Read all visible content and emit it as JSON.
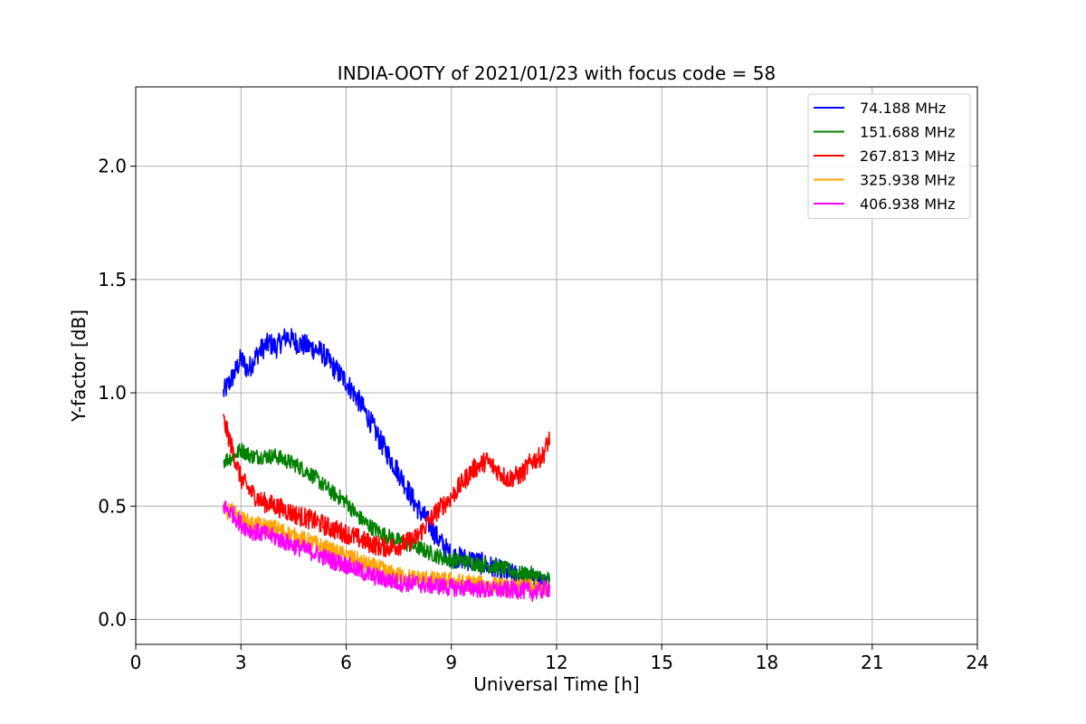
{
  "chart_data": {
    "type": "line",
    "title": "INDIA-OOTY of 2021/01/23 with focus code = 58",
    "xlabel": "Universal Time [h]",
    "ylabel": "Y-factor [dB]",
    "xlim": [
      0,
      24
    ],
    "ylim": [
      -0.11,
      2.35
    ],
    "xticks": [
      0,
      3,
      6,
      9,
      12,
      15,
      18,
      21,
      24
    ],
    "yticks": [
      0.0,
      0.5,
      1.0,
      1.5,
      2.0
    ],
    "xtick_labels": [
      "0",
      "3",
      "6",
      "9",
      "12",
      "15",
      "18",
      "21",
      "24"
    ],
    "ytick_labels": [
      "0.0",
      "0.5",
      "1.0",
      "1.5",
      "2.0"
    ],
    "grid": true,
    "legend_position": "top-right",
    "series": [
      {
        "name": " 74.188 MHz",
        "color": "#0000ff",
        "x": [
          2.5,
          2.8,
          3.0,
          3.2,
          3.5,
          3.8,
          4.0,
          4.3,
          4.6,
          5.0,
          5.3,
          5.6,
          6.0,
          6.3,
          6.6,
          7.0,
          7.3,
          7.6,
          8.0,
          8.3,
          8.6,
          9.0,
          9.3,
          9.6,
          10.0,
          10.3,
          10.6,
          11.0,
          11.3,
          11.6,
          11.8
        ],
        "y": [
          1.0,
          1.08,
          1.15,
          1.1,
          1.18,
          1.22,
          1.2,
          1.25,
          1.22,
          1.2,
          1.18,
          1.12,
          1.05,
          0.98,
          0.9,
          0.78,
          0.7,
          0.62,
          0.5,
          0.44,
          0.36,
          0.28,
          0.27,
          0.26,
          0.24,
          0.22,
          0.2,
          0.19,
          0.17,
          0.15,
          0.15
        ]
      },
      {
        "name": "151.688 MHz",
        "color": "#008000",
        "x": [
          2.5,
          2.8,
          3.0,
          3.3,
          3.6,
          4.0,
          4.3,
          4.6,
          5.0,
          5.3,
          5.6,
          6.0,
          6.3,
          6.6,
          7.0,
          7.3,
          7.6,
          8.0,
          8.3,
          8.6,
          9.0,
          9.3,
          9.6,
          10.0,
          10.3,
          10.6,
          11.0,
          11.3,
          11.6,
          11.8
        ],
        "y": [
          0.7,
          0.72,
          0.75,
          0.72,
          0.72,
          0.72,
          0.7,
          0.68,
          0.64,
          0.6,
          0.56,
          0.52,
          0.46,
          0.42,
          0.38,
          0.36,
          0.34,
          0.32,
          0.3,
          0.28,
          0.26,
          0.26,
          0.25,
          0.24,
          0.23,
          0.22,
          0.2,
          0.2,
          0.18,
          0.18
        ]
      },
      {
        "name": "267.813 MHz",
        "color": "#ff0000",
        "x": [
          2.5,
          2.7,
          3.0,
          3.3,
          3.6,
          4.0,
          4.3,
          4.6,
          5.0,
          5.3,
          5.6,
          6.0,
          6.3,
          6.6,
          7.0,
          7.3,
          7.6,
          8.0,
          8.3,
          8.6,
          9.0,
          9.3,
          9.6,
          10.0,
          10.3,
          10.6,
          11.0,
          11.3,
          11.6,
          11.8
        ],
        "y": [
          0.88,
          0.78,
          0.62,
          0.56,
          0.52,
          0.5,
          0.48,
          0.46,
          0.44,
          0.42,
          0.4,
          0.38,
          0.36,
          0.34,
          0.32,
          0.32,
          0.33,
          0.36,
          0.42,
          0.48,
          0.54,
          0.6,
          0.66,
          0.7,
          0.66,
          0.62,
          0.64,
          0.7,
          0.72,
          0.8
        ]
      },
      {
        "name": "325.938 MHz",
        "color": "#ffa500",
        "x": [
          2.5,
          2.8,
          3.0,
          3.3,
          3.6,
          4.0,
          4.3,
          4.6,
          5.0,
          5.3,
          5.6,
          6.0,
          6.3,
          6.6,
          7.0,
          7.3,
          7.6,
          8.0,
          8.3,
          8.6,
          9.0,
          9.3,
          9.6,
          10.0,
          10.3,
          10.6,
          11.0,
          11.3,
          11.6,
          11.8
        ],
        "y": [
          0.48,
          0.47,
          0.44,
          0.42,
          0.41,
          0.4,
          0.38,
          0.36,
          0.34,
          0.32,
          0.3,
          0.28,
          0.26,
          0.24,
          0.22,
          0.2,
          0.19,
          0.18,
          0.18,
          0.17,
          0.17,
          0.16,
          0.16,
          0.15,
          0.15,
          0.14,
          0.14,
          0.14,
          0.13,
          0.14
        ]
      },
      {
        "name": "406.938 MHz",
        "color": "#ff00ff",
        "x": [
          2.5,
          2.8,
          3.0,
          3.3,
          3.6,
          4.0,
          4.3,
          4.6,
          5.0,
          5.3,
          5.6,
          6.0,
          6.3,
          6.6,
          7.0,
          7.3,
          7.6,
          8.0,
          8.3,
          8.6,
          9.0,
          9.3,
          9.6,
          10.0,
          10.3,
          10.6,
          11.0,
          11.3,
          11.6,
          11.8
        ],
        "y": [
          0.5,
          0.46,
          0.42,
          0.39,
          0.38,
          0.36,
          0.34,
          0.32,
          0.3,
          0.28,
          0.26,
          0.24,
          0.22,
          0.2,
          0.18,
          0.17,
          0.16,
          0.16,
          0.15,
          0.15,
          0.14,
          0.14,
          0.14,
          0.13,
          0.13,
          0.13,
          0.13,
          0.12,
          0.13,
          0.14
        ]
      }
    ]
  }
}
